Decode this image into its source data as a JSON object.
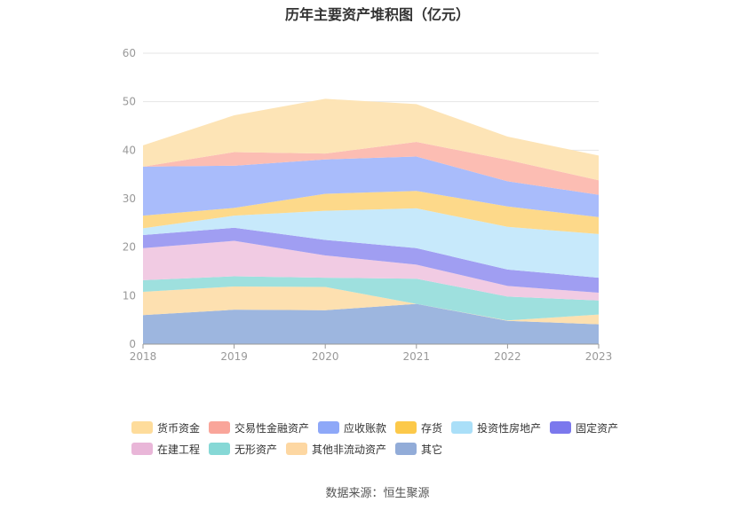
{
  "title": "历年主要资产堆积图（亿元）",
  "source": "数据来源：恒生聚源",
  "chart_data": {
    "type": "area",
    "stacked": true,
    "categories": [
      "2018",
      "2019",
      "2020",
      "2021",
      "2022",
      "2023"
    ],
    "ylim": [
      0,
      60
    ],
    "yticks": [
      0,
      10,
      20,
      30,
      40,
      50,
      60
    ],
    "grid": true,
    "legend_position": "bottom",
    "series": [
      {
        "name": "其它",
        "color": "#9db6df",
        "values": [
          6.0,
          7.1,
          7.0,
          8.3,
          4.8,
          4.1
        ]
      },
      {
        "name": "其他非流动资产",
        "color": "#fde0b0",
        "values": [
          4.8,
          4.8,
          4.8,
          0.0,
          0.1,
          2.0
        ]
      },
      {
        "name": "无形资产",
        "color": "#9ee0de",
        "values": [
          2.4,
          2.1,
          1.9,
          5.2,
          4.9,
          2.9
        ]
      },
      {
        "name": "在建工程",
        "color": "#f1cbe3",
        "values": [
          6.6,
          7.3,
          4.6,
          2.9,
          2.2,
          1.6
        ]
      },
      {
        "name": "固定资产",
        "color": "#a09ef2",
        "values": [
          2.7,
          2.7,
          3.2,
          3.4,
          3.4,
          3.1
        ]
      },
      {
        "name": "投资性房地产",
        "color": "#c7e9fb",
        "values": [
          1.4,
          2.5,
          6.0,
          8.2,
          8.8,
          9.0
        ]
      },
      {
        "name": "存货",
        "color": "#fdd98a",
        "values": [
          2.6,
          1.6,
          3.5,
          3.6,
          4.2,
          3.5
        ]
      },
      {
        "name": "应收账款",
        "color": "#a9bcfb",
        "values": [
          10.1,
          8.7,
          7.1,
          7.1,
          5.2,
          4.6
        ]
      },
      {
        "name": "交易性金融资产",
        "color": "#fcbdb3",
        "values": [
          0.0,
          2.8,
          1.2,
          3.0,
          4.4,
          3.0
        ]
      },
      {
        "name": "货币资金",
        "color": "#fde4b6",
        "values": [
          4.4,
          7.6,
          11.3,
          7.8,
          4.8,
          5.1
        ]
      }
    ]
  },
  "legend": [
    {
      "label": "货币资金",
      "color": "#fedc9b"
    },
    {
      "label": "交易性金融资产",
      "color": "#f9a59a"
    },
    {
      "label": "应收账款",
      "color": "#8ea8f8"
    },
    {
      "label": "存货",
      "color": "#fcc94a"
    },
    {
      "label": "投资性房地产",
      "color": "#aadff8"
    },
    {
      "label": "固定资产",
      "color": "#7b78ed"
    },
    {
      "label": "在建工程",
      "color": "#e9b6d8"
    },
    {
      "label": "无形资产",
      "color": "#86d8d6"
    },
    {
      "label": "其他非流动资产",
      "color": "#fdd7a2"
    },
    {
      "label": "其它",
      "color": "#92acd8"
    }
  ]
}
